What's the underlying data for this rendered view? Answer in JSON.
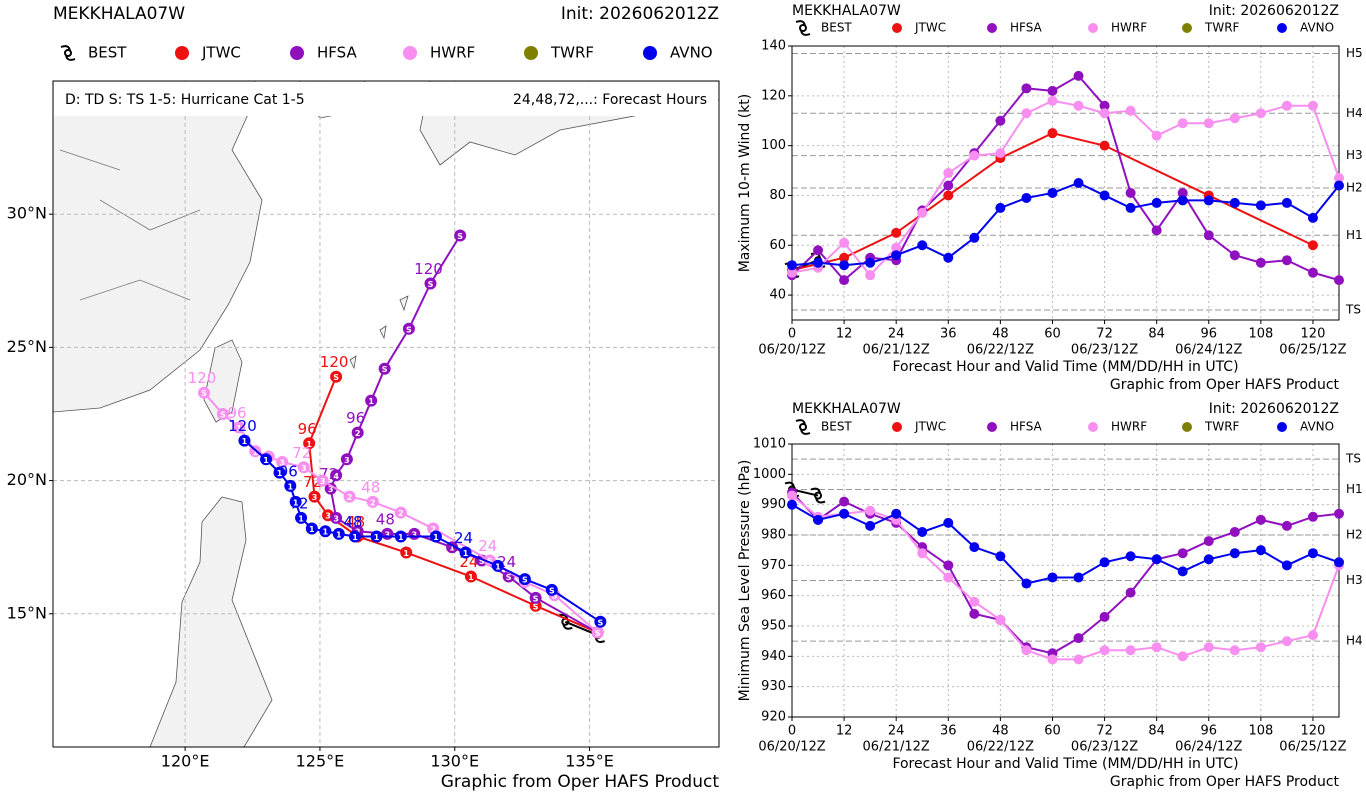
{
  "chart_data": [
    {
      "type": "track",
      "title": "MEKKHALA07W",
      "init": "Init: 2026062012Z",
      "legend_note": "D: TD  S: TS  1-5: Hurricane Cat 1-5",
      "hours_note": "24,48,72,...: Forecast Hours",
      "credit": "Graphic from Oper HAFS Product",
      "xlim": [
        115.1,
        139.8
      ],
      "ylim": [
        10,
        35
      ],
      "grid": true,
      "xticks": [
        {
          "value": 120,
          "label": "120°E"
        },
        {
          "value": 125,
          "label": "125°E"
        },
        {
          "value": 130,
          "label": "130°E"
        },
        {
          "value": 135,
          "label": "135°E"
        }
      ],
      "yticks": [
        {
          "value": 15,
          "label": "15°N"
        },
        {
          "value": 20,
          "label": "20°N"
        },
        {
          "value": 25,
          "label": "25°N"
        },
        {
          "value": 30,
          "label": "30°N"
        }
      ],
      "series": [
        {
          "name": "BEST",
          "color": "#000000",
          "marker": "storm",
          "x": [
            134.1,
            135.3
          ],
          "values": [
            14.7,
            14.2
          ]
        },
        {
          "name": "JTWC",
          "color": "#ee1111",
          "x": [
            135.3,
            133.0,
            130.6,
            128.2,
            126.4,
            125.3,
            124.8,
            124.6,
            125.6
          ],
          "values": [
            14.3,
            15.3,
            16.4,
            17.3,
            17.9,
            18.7,
            19.4,
            21.4,
            23.9
          ],
          "marker_labels": [
            "S",
            "S",
            "1",
            "1",
            "2",
            "3",
            "3",
            "1",
            "S"
          ],
          "hour_labels": [
            null,
            null,
            "24",
            null,
            "48",
            null,
            "72",
            "96",
            "120"
          ]
        },
        {
          "name": "HFSA",
          "color": "#9010c0",
          "x": [
            135.3,
            133.0,
            132.0,
            131.0,
            129.9,
            128.5,
            127.5,
            126.4,
            125.6,
            125.4,
            125.6,
            126.0,
            126.4,
            126.9,
            127.4,
            128.3,
            129.1,
            130.2
          ],
          "values": [
            14.3,
            15.6,
            16.4,
            17.0,
            17.5,
            18.0,
            18.0,
            18.1,
            18.6,
            19.7,
            20.2,
            20.8,
            21.8,
            23.0,
            24.2,
            25.7,
            27.4,
            29.2
          ],
          "marker_labels": [
            "S",
            "S",
            "S",
            "S",
            "1",
            "3",
            "3",
            "3",
            "3",
            "3",
            "4",
            "3",
            "2",
            "1",
            "S",
            "S",
            "S",
            "S"
          ],
          "hour_labels": [
            null,
            null,
            "24",
            null,
            null,
            null,
            "48",
            null,
            null,
            "72",
            null,
            null,
            "96",
            null,
            null,
            null,
            "120",
            null
          ]
        },
        {
          "name": "HWRF",
          "color": "#f88ef0",
          "x": [
            135.3,
            133.7,
            132.6,
            131.3,
            129.2,
            128.0,
            126.96,
            126.1,
            125.1,
            124.4,
            123.6,
            123.1,
            122.6,
            122.0,
            121.4,
            120.7
          ],
          "values": [
            14.3,
            15.7,
            16.2,
            17.0,
            18.2,
            18.8,
            19.2,
            19.4,
            20.0,
            20.5,
            20.7,
            20.9,
            21.1,
            22.0,
            22.5,
            23.3
          ],
          "marker_labels": [
            "S",
            "S",
            "S",
            "S",
            "2",
            "2",
            "2",
            "2",
            "3",
            "3",
            "3",
            "2",
            "1",
            "1",
            "S",
            "S"
          ],
          "hour_labels": [
            null,
            null,
            null,
            "24",
            null,
            null,
            "48",
            null,
            null,
            "72",
            null,
            null,
            null,
            "96",
            null,
            "120"
          ]
        },
        {
          "name": "TWRF",
          "color": "#808000",
          "x": [],
          "values": []
        },
        {
          "name": "AVNO",
          "color": "#0000ee",
          "x": [
            135.4,
            133.6,
            132.6,
            131.6,
            130.4,
            129.3,
            128.0,
            127.1,
            126.3,
            125.7,
            125.2,
            124.7,
            124.3,
            124.1,
            123.9,
            123.5,
            123.0,
            122.2
          ],
          "values": [
            14.7,
            15.9,
            16.3,
            16.8,
            17.3,
            17.9,
            17.9,
            17.9,
            17.9,
            18.0,
            18.1,
            18.2,
            18.6,
            19.2,
            19.8,
            20.3,
            20.8,
            21.5
          ],
          "marker_labels": [
            "S",
            "S",
            "S",
            "1",
            "1",
            "1",
            "1",
            "1",
            "1",
            "1",
            "1",
            "1",
            "1",
            "1",
            "1",
            "1",
            "1",
            "1"
          ],
          "hour_labels": [
            null,
            null,
            null,
            null,
            "24",
            null,
            null,
            null,
            "48",
            null,
            null,
            null,
            "72",
            null,
            "96",
            null,
            null,
            "120"
          ]
        }
      ]
    },
    {
      "type": "line",
      "title": "MEKKHALA07W",
      "init": "Init: 2026062012Z",
      "ylabel": "Maximum 10-m Wind (kt)",
      "xlabel": "Forecast Hour and Valid Time (MM/DD/HH in UTC)",
      "credit": "Graphic from Oper HAFS Product",
      "xlim": [
        0,
        126
      ],
      "ylim": [
        30,
        140
      ],
      "grid": true,
      "xticks": [
        0,
        12,
        24,
        36,
        48,
        60,
        72,
        84,
        96,
        108,
        120
      ],
      "yticks": [
        40,
        60,
        80,
        100,
        120,
        140
      ],
      "date_ticks": [
        {
          "value": 0,
          "label": "06/20/12Z"
        },
        {
          "value": 24,
          "label": "06/21/12Z"
        },
        {
          "value": 48,
          "label": "06/22/12Z"
        },
        {
          "value": 72,
          "label": "06/23/12Z"
        },
        {
          "value": 96,
          "label": "06/24/12Z"
        },
        {
          "value": 120,
          "label": "06/25/12Z"
        }
      ],
      "category_lines": [
        {
          "value": 34,
          "label": "TS"
        },
        {
          "value": 64,
          "label": "H1"
        },
        {
          "value": 83,
          "label": "H2"
        },
        {
          "value": 96,
          "label": "H3"
        },
        {
          "value": 113,
          "label": "H4"
        },
        {
          "value": 137,
          "label": "H5"
        }
      ],
      "series": [
        {
          "name": "BEST",
          "color": "#000000",
          "marker": "storm",
          "x": [
            0,
            6
          ],
          "values": [
            50,
            54
          ]
        },
        {
          "name": "JTWC",
          "color": "#ee1111",
          "x": [
            0,
            12,
            24,
            36,
            48,
            60,
            72,
            96,
            120
          ],
          "values": [
            50,
            55,
            65,
            80,
            95,
            105,
            100,
            80,
            60
          ]
        },
        {
          "name": "HFSA",
          "color": "#9010c0",
          "x": [
            0,
            6,
            12,
            18,
            24,
            30,
            36,
            42,
            48,
            54,
            60,
            66,
            72,
            78,
            84,
            90,
            96,
            102,
            108,
            114,
            120,
            126
          ],
          "values": [
            48,
            58,
            46,
            55,
            54,
            74,
            84,
            97,
            110,
            123,
            122,
            128,
            116,
            81,
            66,
            81,
            64,
            56,
            53,
            54,
            49,
            46
          ]
        },
        {
          "name": "HWRF",
          "color": "#f88ef0",
          "x": [
            0,
            6,
            12,
            18,
            24,
            30,
            36,
            42,
            48,
            54,
            60,
            66,
            72,
            78,
            84,
            90,
            96,
            102,
            108,
            114,
            120,
            126
          ],
          "values": [
            49,
            51,
            61,
            48,
            59,
            73,
            89,
            96,
            97,
            113,
            118,
            116,
            113,
            114,
            104,
            109,
            109,
            111,
            113,
            116,
            116,
            87
          ]
        },
        {
          "name": "TWRF",
          "color": "#808000",
          "x": [],
          "values": []
        },
        {
          "name": "AVNO",
          "color": "#0000ee",
          "x": [
            0,
            6,
            12,
            18,
            24,
            30,
            36,
            42,
            48,
            54,
            60,
            66,
            72,
            78,
            84,
            90,
            96,
            102,
            108,
            114,
            120,
            126
          ],
          "values": [
            52,
            53,
            52,
            53,
            56,
            60,
            55,
            63,
            75,
            79,
            81,
            85,
            80,
            75,
            77,
            78,
            78,
            77,
            76,
            77,
            71,
            84
          ]
        }
      ]
    },
    {
      "type": "line",
      "title": "MEKKHALA07W",
      "init": "Init: 2026062012Z",
      "ylabel": "Minimum Sea Level Pressure (hPa)",
      "xlabel": "Forecast Hour and Valid Time (MM/DD/HH in UTC)",
      "credit": "Graphic from Oper HAFS Product",
      "xlim": [
        0,
        126
      ],
      "ylim": [
        920,
        1010
      ],
      "grid": true,
      "xticks": [
        0,
        12,
        24,
        36,
        48,
        60,
        72,
        84,
        96,
        108,
        120
      ],
      "yticks": [
        920,
        930,
        940,
        950,
        960,
        970,
        980,
        990,
        1000,
        1010
      ],
      "date_ticks": [
        {
          "value": 0,
          "label": "06/20/12Z"
        },
        {
          "value": 24,
          "label": "06/21/12Z"
        },
        {
          "value": 48,
          "label": "06/22/12Z"
        },
        {
          "value": 72,
          "label": "06/23/12Z"
        },
        {
          "value": 96,
          "label": "06/24/12Z"
        },
        {
          "value": 120,
          "label": "06/25/12Z"
        }
      ],
      "category_lines": [
        {
          "value": 1005,
          "label": "TS"
        },
        {
          "value": 995,
          "label": "H1"
        },
        {
          "value": 980,
          "label": "H2"
        },
        {
          "value": 965,
          "label": "H3"
        },
        {
          "value": 945,
          "label": "H4"
        }
      ],
      "series": [
        {
          "name": "BEST",
          "color": "#000000",
          "marker": "storm",
          "x": [
            0,
            6
          ],
          "values": [
            995,
            993
          ]
        },
        {
          "name": "JTWC",
          "color": "#ee1111",
          "x": [],
          "values": []
        },
        {
          "name": "HFSA",
          "color": "#9010c0",
          "x": [
            0,
            6,
            12,
            18,
            24,
            30,
            36,
            42,
            48,
            54,
            60,
            66,
            72,
            78,
            84,
            90,
            96,
            102,
            108,
            114,
            120,
            126
          ],
          "values": [
            994,
            985,
            991,
            987,
            984,
            976,
            970,
            954,
            952,
            943,
            941,
            946,
            953,
            961,
            972,
            974,
            978,
            981,
            985,
            983,
            986,
            987
          ]
        },
        {
          "name": "HWRF",
          "color": "#f88ef0",
          "x": [
            0,
            6,
            12,
            18,
            24,
            30,
            36,
            42,
            48,
            54,
            60,
            66,
            72,
            78,
            84,
            90,
            96,
            102,
            108,
            114,
            120,
            126
          ],
          "values": [
            993,
            986,
            987,
            988,
            985,
            974,
            966,
            958,
            952,
            942,
            939,
            939,
            942,
            942,
            943,
            940,
            943,
            942,
            943,
            945,
            947,
            970
          ]
        },
        {
          "name": "TWRF",
          "color": "#808000",
          "x": [],
          "values": []
        },
        {
          "name": "AVNO",
          "color": "#0000ee",
          "x": [
            0,
            6,
            12,
            18,
            24,
            30,
            36,
            42,
            48,
            54,
            60,
            66,
            72,
            78,
            84,
            90,
            96,
            102,
            108,
            114,
            120,
            126
          ],
          "values": [
            990,
            985,
            987,
            983,
            987,
            981,
            984,
            976,
            973,
            964,
            966,
            966,
            971,
            973,
            972,
            968,
            972,
            974,
            975,
            970,
            974,
            971
          ]
        }
      ]
    }
  ]
}
